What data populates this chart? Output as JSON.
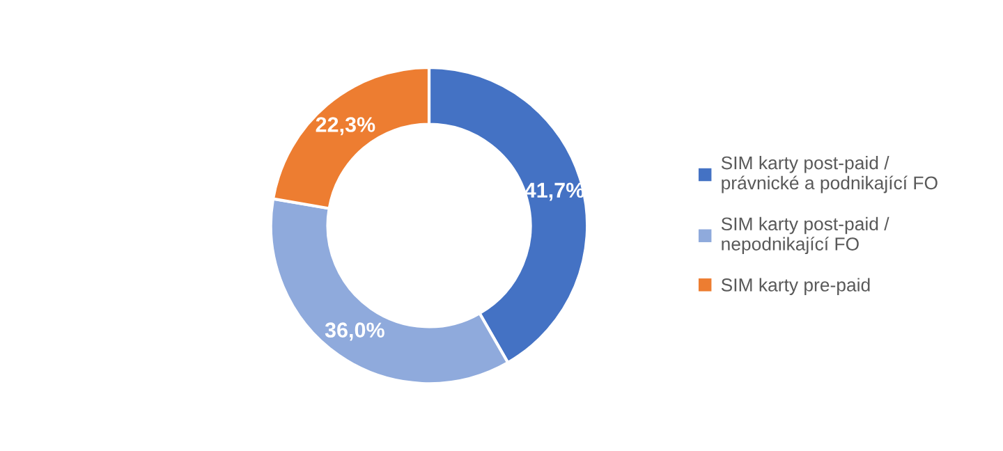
{
  "chart_data": {
    "type": "donut",
    "categories": [
      "SIM karty post-paid /\nprávnické a podnikající FO",
      "SIM karty post-paid /\nnepodnikající FO",
      "SIM karty pre-paid"
    ],
    "values": [
      41.7,
      36.0,
      22.3
    ],
    "colors": [
      "#4472c4",
      "#8faadc",
      "#ed7d31"
    ],
    "value_labels": [
      "41,7%",
      "36,0%",
      "22,3%"
    ],
    "legend": "right"
  }
}
